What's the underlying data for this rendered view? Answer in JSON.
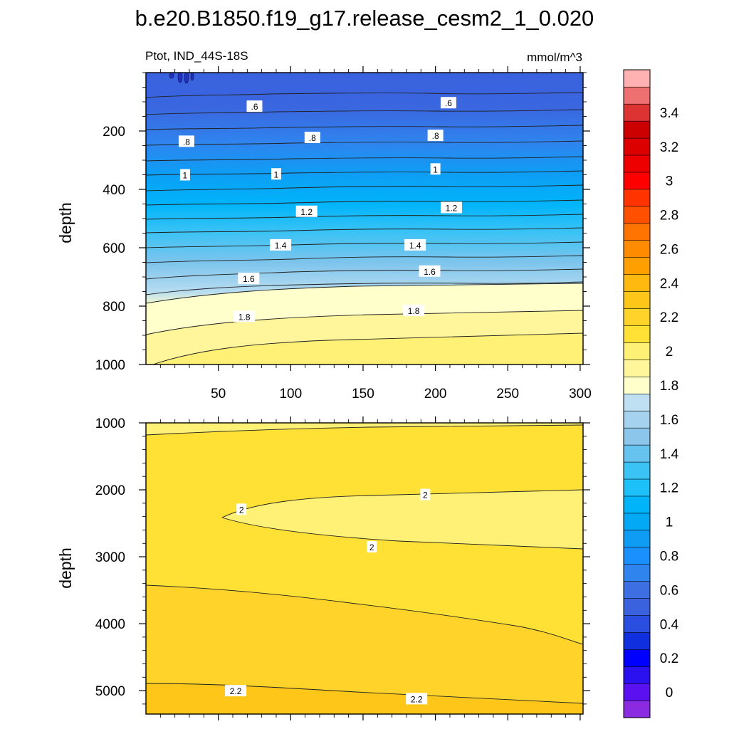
{
  "chart_data": {
    "type": "contour",
    "title": "b.e20.B1850.f19_g17.release_cesm2_1_0.020",
    "variable_label": "Ptot, IND_44S-18S",
    "units_label": "mmol/m^3",
    "x_label": "",
    "y_label": "depth",
    "xlim": [
      0,
      302
    ],
    "x_ticks": [
      50,
      100,
      150,
      200,
      250,
      300
    ],
    "panels": [
      {
        "name": "upper",
        "ylim": [
          0,
          1000
        ],
        "y_ticks": [
          200,
          400,
          600,
          800,
          1000
        ],
        "contour_labels": [
          {
            "text": ".6",
            "x": 75,
            "y": 115
          },
          {
            "text": ".6",
            "x": 209,
            "y": 103
          },
          {
            "text": ".8",
            "x": 28,
            "y": 235
          },
          {
            "text": ".8",
            "x": 115,
            "y": 222
          },
          {
            "text": ".8",
            "x": 200,
            "y": 215
          },
          {
            "text": "1",
            "x": 27,
            "y": 350
          },
          {
            "text": "1",
            "x": 90,
            "y": 347
          },
          {
            "text": "1",
            "x": 200,
            "y": 330
          },
          {
            "text": "1.2",
            "x": 111,
            "y": 475
          },
          {
            "text": "1.2",
            "x": 211,
            "y": 462
          },
          {
            "text": "1.4",
            "x": 93,
            "y": 590
          },
          {
            "text": "1.4",
            "x": 186,
            "y": 590
          },
          {
            "text": "1.6",
            "x": 71,
            "y": 705
          },
          {
            "text": "1.6",
            "x": 196,
            "y": 680
          },
          {
            "text": "1.8",
            "x": 68,
            "y": 835
          },
          {
            "text": "1.8",
            "x": 185,
            "y": 815
          }
        ]
      },
      {
        "name": "lower",
        "ylim": [
          1000,
          5350
        ],
        "y_ticks": [
          1000,
          2000,
          3000,
          4000,
          5000
        ],
        "contour_labels": [
          {
            "text": "2",
            "x": 66,
            "y": 2290
          },
          {
            "text": "2",
            "x": 193,
            "y": 2070
          },
          {
            "text": "2",
            "x": 156,
            "y": 2850
          },
          {
            "text": "2.2",
            "x": 62,
            "y": 5000
          },
          {
            "text": "2.2",
            "x": 187,
            "y": 5120
          }
        ]
      }
    ],
    "colorbar": {
      "levels": [
        -0.1,
        0,
        0.1,
        0.2,
        0.3,
        0.4,
        0.5,
        0.6,
        0.7,
        0.8,
        0.9,
        1.0,
        1.1,
        1.2,
        1.3,
        1.4,
        1.5,
        1.6,
        1.7,
        1.8,
        1.9,
        2.0,
        2.1,
        2.2,
        2.3,
        2.4,
        2.5,
        2.6,
        2.7,
        2.8,
        2.9,
        3.0,
        3.1,
        3.2,
        3.3,
        3.4,
        3.5,
        3.6
      ],
      "colors": [
        "#8a2be2",
        "#5a10f0",
        "#2b10f0",
        "#0000ff",
        "#1030e0",
        "#2a4ee0",
        "#3a62de",
        "#3d6fe2",
        "#2f84ee",
        "#1a90ff",
        "#0f9cf5",
        "#03a9f4",
        "#00b4fa",
        "#1ec0fa",
        "#3cc3f5",
        "#66c2ee",
        "#8cc6ea",
        "#a5d2ee",
        "#bee0f2",
        "#ffffcc",
        "#fff59a",
        "#fff176",
        "#ffe135",
        "#ffd32a",
        "#fec619",
        "#ffb90f",
        "#ffa000",
        "#ff8c00",
        "#ff7300",
        "#ff5000",
        "#ff3300",
        "#ff0000",
        "#ee0000",
        "#dd0000",
        "#cc0000",
        "#dd3333",
        "#ee7070",
        "#ffb0b0"
      ],
      "tick_labels": [
        "0",
        "0.2",
        "0.4",
        "0.6",
        "0.8",
        "1",
        "1.2",
        "1.4",
        "1.6",
        "1.8",
        "2",
        "2.2",
        "2.4",
        "2.6",
        "2.8",
        "3",
        "3.2",
        "3.4"
      ],
      "tick_values": [
        0,
        0.2,
        0.4,
        0.6,
        0.8,
        1.0,
        1.2,
        1.4,
        1.6,
        1.8,
        2.0,
        2.2,
        2.4,
        2.6,
        2.8,
        3.0,
        3.2,
        3.4
      ]
    }
  }
}
